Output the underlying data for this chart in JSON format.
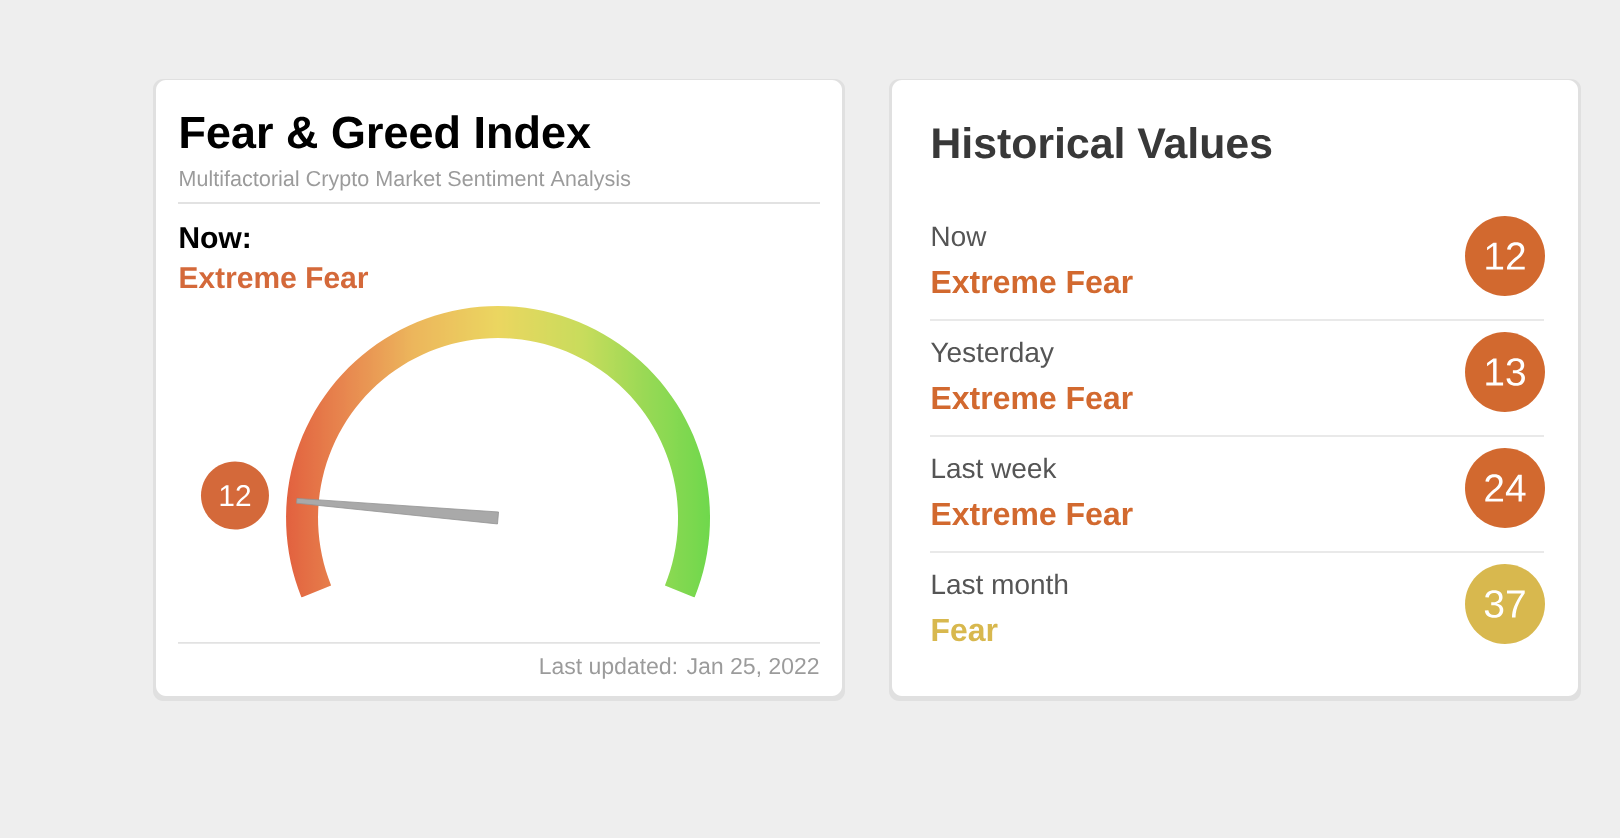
{
  "chart_data": [
    {
      "type": "other",
      "title": "Fear & Greed Index",
      "subtitle": "Multifactorial Crypto Market Sentiment Analysis",
      "annotations": [
        "Now:",
        "Extreme Fear",
        "Last updated: Jan 25, 2022"
      ],
      "values": [
        12
      ],
      "color": "#d4693a",
      "data_labels": true
    },
    {
      "type": "other",
      "title": "Historical Values",
      "values": [
        12,
        13,
        24,
        37
      ],
      "colors": [
        "#d2692f",
        "#d2692f",
        "#d2692f",
        "#d8b84e"
      ],
      "annotations": [
        "Now",
        "Extreme Fear",
        "Yesterday",
        "Extreme Fear",
        "Last week",
        "Extreme Fear",
        "Last month",
        "Fear"
      ],
      "data_labels": true
    }
  ]
}
